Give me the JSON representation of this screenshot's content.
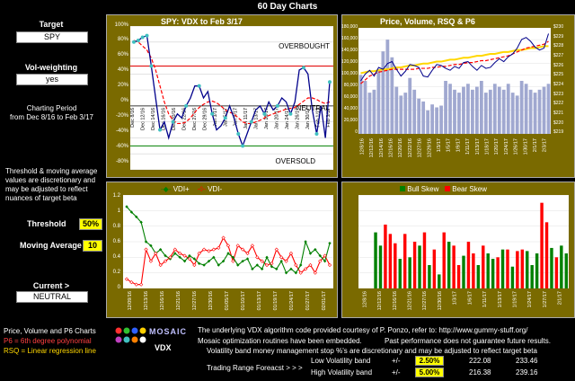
{
  "page_title": "60 Day Charts",
  "left": {
    "target_label": "Target",
    "target_value": "SPY",
    "vol_label": "Vol-weighting",
    "vol_value": "yes",
    "period_label": "Charting Period",
    "period_range": "from Dec 8/16 to Feb 3/17",
    "note_lines": [
      "Threshold & moving average",
      "values are discretionary and",
      "may be adjusted to reflect",
      "nuances of target beta"
    ],
    "threshold_label": "Threshold",
    "threshold_value": "50%",
    "ma_label": "Moving Average",
    "ma_value": "10",
    "current_label": "Current >",
    "current_value": "NEUTRAL",
    "legend_title": "Price, Volume and P6 Charts",
    "legend_p6": "P6 = 6th degree polynomial",
    "legend_rsq": "RSQ = Linear regression line"
  },
  "colors": {
    "panel": "#7a6a00",
    "vdx_line": "#00008b",
    "ma_line": "#ff0000",
    "teal": "#40c0c0",
    "bull": "#008000",
    "bear": "#ff0000",
    "bars": "#a0a8d0",
    "rsq": "#ffd700",
    "threshold": "#008000"
  },
  "chart_data": [
    {
      "type": "line",
      "title": "SPY:   VDX to Feb 3/17",
      "ylim": [
        -80,
        100
      ],
      "yticks": [
        "100%",
        "80%",
        "60%",
        "40%",
        "20%",
        "0%",
        "-20%",
        "-40%",
        "-60%",
        "-80%"
      ],
      "annotations": [
        "OVERBOUGHT",
        "NEUTRAL",
        "OVERSOLD"
      ],
      "x_labels": [
        "Dec 8/16",
        "Dec 12/16",
        "Dec 14/16",
        "Dec 16/16",
        "Dec 20/16",
        "Dec 22/16",
        "Dec 27/16",
        "Dec 29/16",
        "Jan 3/17",
        "Jan 5/17",
        "Jan 9/17",
        "Jan 11/17",
        "Jan 13/17",
        "Jan 18/17",
        "Jan 20/17",
        "Jan 24/17",
        "Jan 26/17",
        "Jan 30/17",
        "Feb 1/17",
        "Feb 3/17"
      ],
      "series": [
        {
          "name": "VDX",
          "values": [
            80,
            82,
            86,
            88,
            50,
            10,
            -30,
            -20,
            -40,
            -20,
            -10,
            -15,
            0,
            10,
            25,
            25,
            10,
            18,
            -10,
            -30,
            -25,
            -15,
            0,
            -15,
            -35,
            -50,
            -35,
            -20,
            -5,
            0,
            -10,
            5,
            -5,
            0,
            10,
            5,
            -10,
            5,
            45,
            48,
            40,
            -5,
            -35,
            0,
            -40,
            30
          ]
        },
        {
          "name": "MA",
          "values": [
            82,
            80,
            75,
            70,
            60,
            45,
            25,
            5,
            -10,
            -18,
            -22,
            -22,
            -20,
            -15,
            -8,
            -2,
            2,
            5,
            6,
            4,
            0,
            -5,
            -8,
            -10,
            -15,
            -20,
            -22,
            -22,
            -20,
            -18,
            -15,
            -12,
            -10,
            -8,
            -6,
            -4,
            -3,
            -2,
            2,
            6,
            10,
            10,
            8,
            5,
            3,
            5
          ]
        }
      ]
    },
    {
      "type": "bar",
      "title": "Price,  Volume, RSQ & P6",
      "ylim": [
        0,
        180000
      ],
      "y2lim": [
        219,
        230
      ],
      "yticks": [
        "180,000",
        "160,000",
        "140,000",
        "120,000",
        "100,000",
        "80,000",
        "60,000",
        "40,000",
        "20,000",
        "0"
      ],
      "y2ticks": [
        "$230",
        "$229",
        "$228",
        "$227",
        "$226",
        "$225",
        "$224",
        "$223",
        "$222",
        "$221",
        "$220",
        "$219"
      ],
      "x_labels": [
        "12/8/16",
        "12/12/16",
        "12/14/16",
        "12/16/16",
        "12/20/16",
        "12/22/16",
        "12/27/16",
        "12/29/16",
        "1/3/17",
        "1/5/17",
        "1/9/17",
        "1/11/17",
        "1/13/17",
        "1/18/17",
        "1/20/17",
        "1/24/17",
        "1/26/17",
        "1/30/17",
        "2/1/17",
        "2/3/17"
      ],
      "volume": [
        100000,
        90000,
        70000,
        75000,
        110000,
        140000,
        160000,
        130000,
        80000,
        65000,
        70000,
        95000,
        75000,
        60000,
        55000,
        40000,
        50000,
        45000,
        48000,
        90000,
        85000,
        75000,
        70000,
        80000,
        85000,
        75000,
        80000,
        90000,
        70000,
        75000,
        85000,
        80000,
        75000,
        85000,
        70000,
        65000,
        90000,
        85000,
        75000,
        70000,
        75000,
        80000,
        85000
      ],
      "series": [
        {
          "name": "Price",
          "values": [
            224.5,
            225.2,
            225.6,
            225.0,
            225.9,
            225.7,
            226.3,
            226.5,
            225.7,
            225.0,
            225.5,
            226.2,
            226.1,
            225.9,
            225.0,
            224.9,
            225.6,
            226.2,
            226.1,
            225.8,
            225.6,
            226.0,
            225.8,
            226.4,
            226.5,
            226.0,
            225.6,
            226.1,
            225.8,
            225.9,
            226.4,
            226.8,
            226.5,
            227.0,
            227.3,
            227.9,
            228.8,
            229.0,
            228.6,
            228.0,
            227.7,
            227.9,
            229.4
          ]
        },
        {
          "name": "P6",
          "values": [
            224.2,
            224.6,
            225.0,
            225.2,
            225.4,
            225.5,
            225.6,
            225.7,
            225.7,
            225.7,
            225.7,
            225.7,
            225.7,
            225.8,
            225.8,
            225.8,
            225.9,
            225.9,
            226.0,
            226.0,
            226.1,
            226.2,
            226.2,
            226.3,
            226.4,
            226.4,
            226.5,
            226.6,
            226.6,
            226.7,
            226.8,
            226.9,
            227.0,
            227.1,
            227.3,
            227.5,
            227.7,
            227.9,
            228.0,
            228.1,
            228.2,
            228.3,
            228.6
          ]
        },
        {
          "name": "RSQ",
          "values": [
            225.3,
            225.4,
            225.5,
            225.5,
            225.6,
            225.7,
            225.7,
            225.8,
            225.9,
            225.9,
            226.0,
            226.1,
            226.1,
            226.2,
            226.3,
            226.3,
            226.4,
            226.5,
            226.5,
            226.6,
            226.7,
            226.7,
            226.8,
            226.9,
            226.9,
            227.0,
            227.1,
            227.1,
            227.2,
            227.3,
            227.3,
            227.4,
            227.5,
            227.5,
            227.6,
            227.7,
            227.7,
            227.8,
            227.9,
            227.9,
            228.0,
            228.1,
            228.1
          ]
        }
      ]
    },
    {
      "type": "line",
      "title": "",
      "ylim": [
        0,
        1.2
      ],
      "yticks": [
        "1.2",
        "1",
        "0.8",
        "0.6",
        "0.4",
        "0.2",
        "0"
      ],
      "legend": [
        "VDI+",
        "VDI-"
      ],
      "x_labels": [
        "12/09/16",
        "12/13/16",
        "12/16/16",
        "12/21/16",
        "12/27/16",
        "12/30/16",
        "01/05/17",
        "01/10/17",
        "01/13/17",
        "01/19/17",
        "01/24/17",
        "01/27/17",
        "02/01/17"
      ],
      "series": [
        {
          "name": "VDI+",
          "values": [
            1.05,
            0.98,
            0.92,
            0.85,
            0.6,
            0.55,
            0.45,
            0.5,
            0.42,
            0.38,
            0.45,
            0.4,
            0.35,
            0.42,
            0.38,
            0.32,
            0.3,
            0.35,
            0.4,
            0.3,
            0.35,
            0.45,
            0.4,
            0.3,
            0.35,
            0.38,
            0.25,
            0.3,
            0.25,
            0.4,
            0.28,
            0.25,
            0.35,
            0.2,
            0.25,
            0.2,
            0.3,
            0.6,
            0.45,
            0.5,
            0.42,
            0.35,
            0.58
          ]
        },
        {
          "name": "VDI-",
          "values": [
            0.12,
            0.08,
            0.05,
            0.05,
            0.5,
            0.35,
            0.45,
            0.3,
            0.35,
            0.4,
            0.5,
            0.45,
            0.42,
            0.38,
            0.3,
            0.45,
            0.5,
            0.48,
            0.5,
            0.52,
            0.65,
            0.55,
            0.35,
            0.55,
            0.5,
            0.45,
            0.55,
            0.4,
            0.35,
            0.3,
            0.32,
            0.5,
            0.4,
            0.35,
            0.45,
            0.3,
            0.2,
            0.25,
            0.3,
            0.2,
            0.35,
            0.42,
            0.3
          ]
        }
      ]
    },
    {
      "type": "bar",
      "title": "",
      "ylim": [
        0,
        1.2
      ],
      "legend": [
        "Bull Skew",
        "Bear Skew"
      ],
      "x_labels": [
        "12/8/16",
        "12/12/16",
        "12/16/16",
        "12/21/16",
        "12/27/16",
        "12/30/16",
        "1/3/17",
        "1/6/17",
        "1/11/17",
        "1/13/17",
        "1/19/17",
        "1/24/17",
        "1/27/17",
        "2/1/17"
      ],
      "series": [
        {
          "name": "Bull Skew",
          "values": [
            0,
            0,
            0,
            0.72,
            0.55,
            0,
            0,
            0,
            0.38,
            0,
            0.4,
            0,
            0.55,
            0,
            0.3,
            0,
            0.18,
            0,
            0.6,
            0,
            0,
            0.42,
            0,
            0,
            0.3,
            0,
            0.45,
            0.38,
            0,
            0.5,
            0,
            0.28,
            0,
            0,
            0.48,
            0.3,
            0.45,
            0,
            0,
            0.52,
            0,
            0.55,
            0.45
          ]
        },
        {
          "name": "Bear Skew",
          "values": [
            0,
            0,
            0,
            0,
            0,
            0.82,
            0.7,
            0.58,
            0,
            0.7,
            0,
            0.6,
            0,
            0.72,
            0,
            0.5,
            0,
            0.72,
            0,
            0.55,
            0.3,
            0,
            0.6,
            0.45,
            0,
            0.55,
            0,
            0,
            0.4,
            0,
            0.5,
            0,
            0.48,
            0.5,
            0,
            0,
            0,
            1.1,
            0.85,
            0,
            0.4,
            0,
            0
          ]
        }
      ]
    }
  ],
  "footer": {
    "brand_name": "MOSAIC",
    "brand_sub": "VDX",
    "line1": "The underlying VDX algorithm code provided courtesy of P. Ponzo, refer to:  http://www.gummy-stuff.org/",
    "line2a": "Mosaic optimization routines have been embedded.",
    "line2b": "Past performance does not guarantee future results.",
    "line3": "Volatility band money management stop %'s are discretionary and may be adjusted to reflect target beta",
    "forecast_label": "Trading Range Foreacst > > >",
    "low_label": "Low Volatility band",
    "low_pm": "+/-",
    "low_pct": "2.50%",
    "low_lo": "222.08",
    "low_hi": "233.46",
    "high_label": "High Volatility band",
    "high_pm": "+/-",
    "high_pct": "5.00%",
    "high_lo": "216.38",
    "high_hi": "239.16"
  }
}
